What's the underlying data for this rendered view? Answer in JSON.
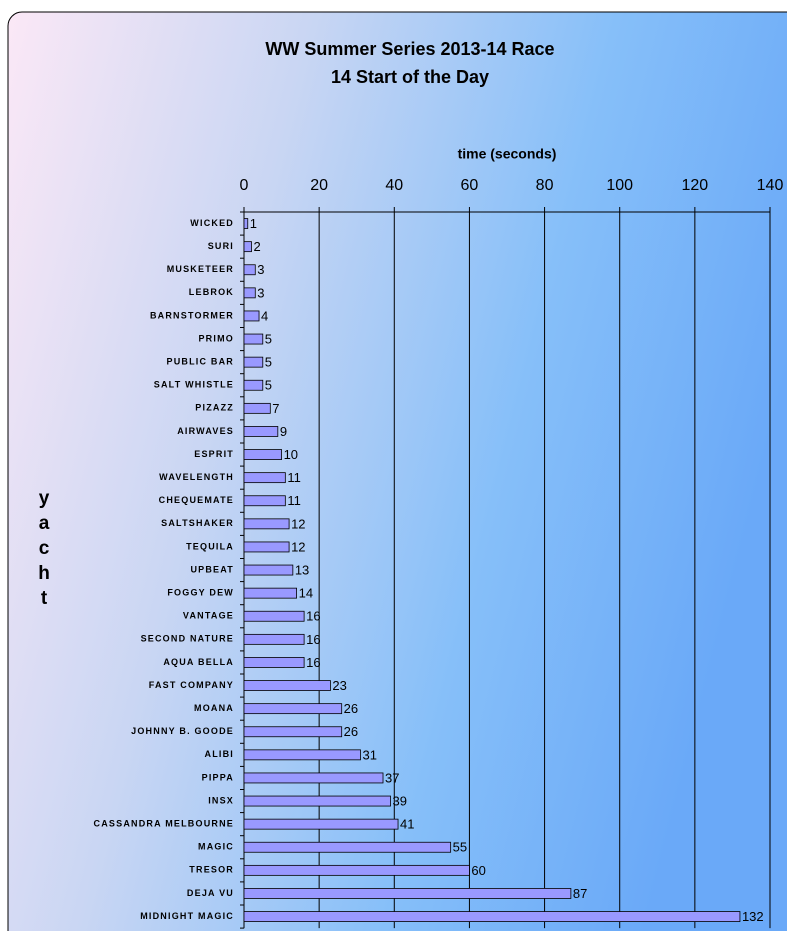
{
  "chart_data": {
    "type": "bar",
    "orientation": "horizontal",
    "title": [
      "WW Summer Series 2013-14 Race",
      "14 Start of the Day"
    ],
    "x_label": "time (seconds)",
    "y_label": "yacht",
    "categories": [
      "WICKED",
      "SURI",
      "MUSKETEER",
      "LEBROK",
      "BARNSTORMER",
      "PRIMO",
      "PUBLIC BAR",
      "SALT WHISTLE",
      "PIZAZZ",
      "AIRWAVES",
      "ESPRIT",
      "WAVELENGTH",
      "CHEQUEMATE",
      "SALTSHAKER",
      "TEQUILA",
      "UPBEAT",
      "FOGGY DEW",
      "VANTAGE",
      "SECOND NATURE",
      "AQUA BELLA",
      "FAST COMPANY",
      "MOANA",
      "JOHNNY B. GOODE",
      "ALIBI",
      "PIPPA",
      "INSX",
      "CASSANDRA MELBOURNE",
      "MAGIC",
      "TRESOR",
      "DEJA VU",
      "MIDNIGHT MAGIC"
    ],
    "values": [
      1,
      2,
      3,
      3,
      4,
      5,
      5,
      5,
      7,
      9,
      10,
      11,
      11,
      12,
      12,
      13,
      14,
      16,
      16,
      16,
      23,
      26,
      26,
      31,
      37,
      39,
      41,
      55,
      60,
      87,
      132
    ],
    "color": "#9999ff",
    "xlim": [
      0,
      140
    ],
    "xticks": [
      0,
      20,
      40,
      60,
      80,
      100,
      120,
      140
    ],
    "grid": true
  }
}
